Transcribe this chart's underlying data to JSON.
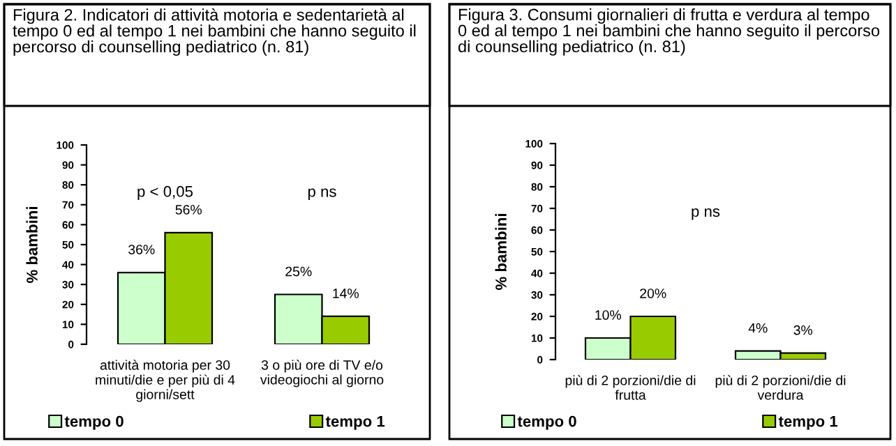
{
  "chart_data": [
    {
      "type": "bar",
      "title": "Figura 2. Indicatori di attività motoria e sedentarietà al tempo 0 ed al tempo 1 nei bambini che hanno seguito il percorso di counselling pediatrico (n. 81)",
      "ylabel": "% bambini",
      "categories": [
        "attività motoria per 30 minuti/die e per più di 4 giorni/sett",
        "3 o più ore di TV e/o videogiochi al giorno"
      ],
      "series": [
        {
          "name": "tempo 0",
          "color": "#ccffcc",
          "values": [
            36,
            25
          ],
          "value_labels": [
            "36%",
            "25%"
          ]
        },
        {
          "name": "tempo 1",
          "color": "#99cc00",
          "values": [
            56,
            14
          ],
          "value_labels": [
            "56%",
            "14%"
          ]
        }
      ],
      "ylim": [
        0,
        100
      ],
      "yticks": [
        0,
        10,
        20,
        30,
        40,
        50,
        60,
        70,
        80,
        90,
        100
      ],
      "annotations": [
        "p < 0,05",
        "p ns"
      ],
      "legend": "bottom",
      "grid": false
    },
    {
      "type": "bar",
      "title": "Figura 3. Consumi giornalieri di frutta e verdura al tempo 0 ed al tempo 1 nei bambini che hanno seguito il percorso di counselling pediatrico (n. 81)",
      "ylabel": "% bambini",
      "categories": [
        "più di 2 porzioni/die di frutta",
        "più di 2 porzioni/die di verdura"
      ],
      "series": [
        {
          "name": "tempo 0",
          "color": "#ccffcc",
          "values": [
            10,
            4
          ],
          "value_labels": [
            "10%",
            "4%"
          ]
        },
        {
          "name": "tempo 1",
          "color": "#99cc00",
          "values": [
            20,
            3
          ],
          "value_labels": [
            "20%",
            "3%"
          ]
        }
      ],
      "ylim": [
        0,
        100
      ],
      "yticks": [
        0,
        10,
        20,
        30,
        40,
        50,
        60,
        70,
        80,
        90,
        100
      ],
      "annotations": [
        "p ns"
      ],
      "legend": "bottom",
      "grid": false
    }
  ]
}
